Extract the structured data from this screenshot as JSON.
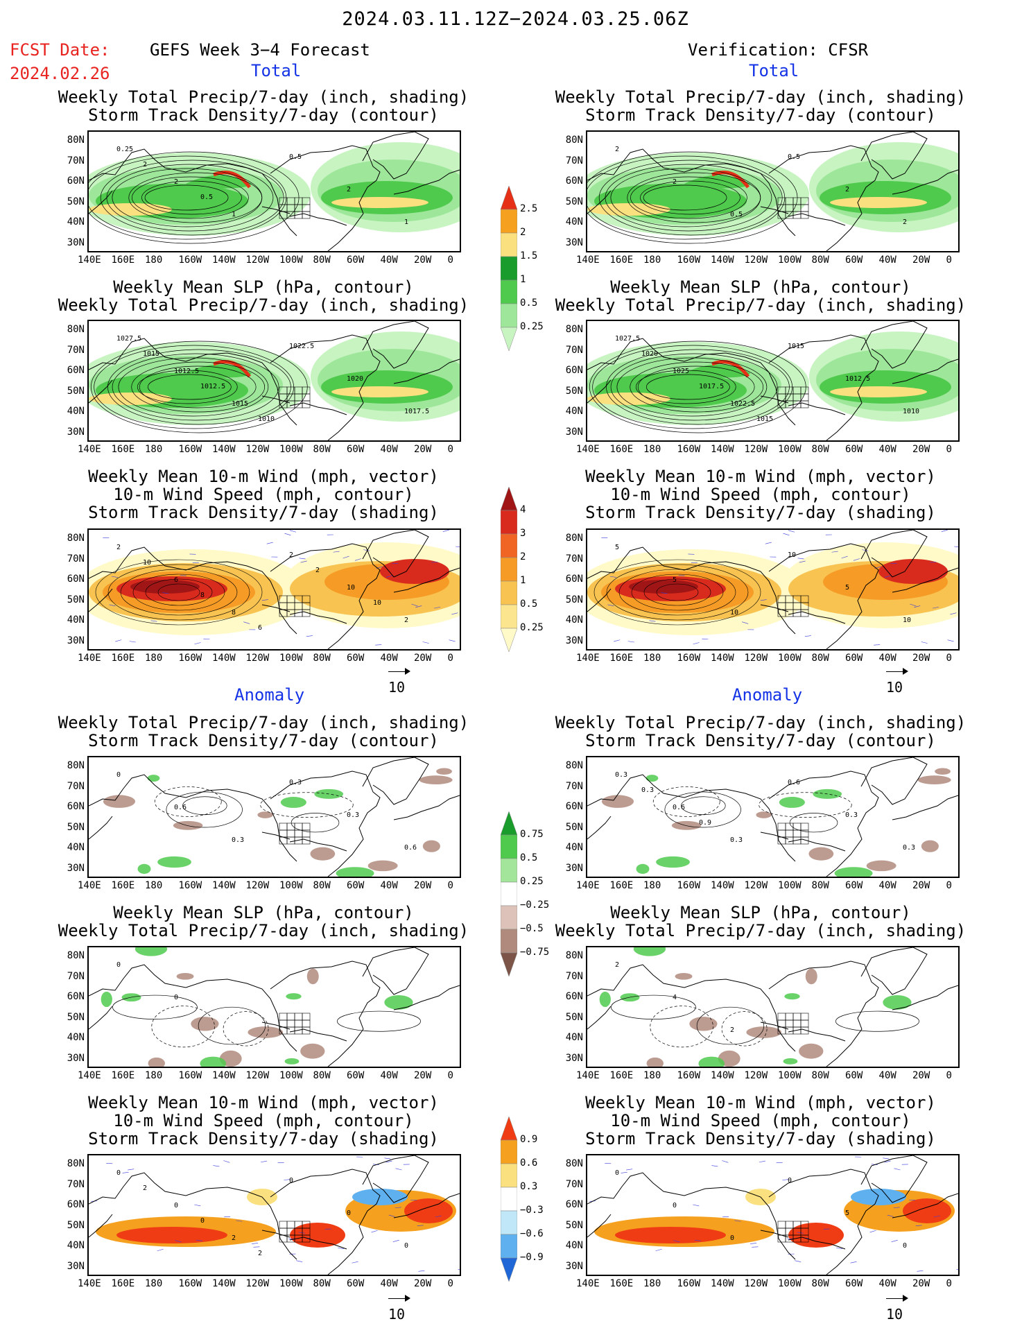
{
  "header": {
    "title": "2024.03.11.12Z−2024.03.25.06Z",
    "fcst_label": "FCST Date:",
    "fcst_date": "2024.02.26",
    "left_title": "GEFS Week 3−4 Forecast",
    "right_title": "Verification: CFSR"
  },
  "sections": {
    "total": "Total",
    "anomaly": "Anomaly"
  },
  "titles": {
    "precip_storm": [
      "Weekly Total Precip/7-day (inch, shading)",
      "Storm Track Density/7-day (contour)"
    ],
    "slp_precip": [
      "Weekly Mean SLP (hPa, contour)",
      "Weekly Total Precip/7-day (inch, shading)"
    ],
    "wind": [
      "Weekly Mean 10-m Wind (mph, vector)",
      "10-m Wind Speed (mph, contour)",
      "Storm Track Density/7-day (shading)"
    ]
  },
  "axes": {
    "lat_labels": [
      "80N",
      "70N",
      "60N",
      "50N",
      "40N",
      "30N"
    ],
    "lon_labels": [
      "140E",
      "160E",
      "180",
      "160W",
      "140W",
      "120W",
      "100W",
      "80W",
      "60W",
      "40W",
      "20W",
      "0"
    ]
  },
  "vector_ref": "10",
  "colorbars": {
    "precip_total": {
      "labels": [
        "2.5",
        "2",
        "1.5",
        "1",
        "0.5",
        "0.25"
      ],
      "colors": [
        "#e53017",
        "#f5a11f",
        "#fbe07f",
        "#1a9c2d",
        "#4fca4d",
        "#9ee79a",
        "#c8f4c2"
      ]
    },
    "storm_total": {
      "labels": [
        "4",
        "3",
        "2",
        "1",
        "0.5",
        "0.25"
      ],
      "colors": [
        "#a01616",
        "#d92b1d",
        "#f06524",
        "#f59b26",
        "#f8c351",
        "#fbe58f",
        "#fffac8"
      ]
    },
    "precip_anom": {
      "labels": [
        "0.75",
        "0.5",
        "0.25",
        "−0.25",
        "−0.5",
        "−0.75"
      ],
      "colors": [
        "#1a9c2d",
        "#4fca4d",
        "#a3e59b",
        "#ffffff",
        "#dcc2b8",
        "#b08a7d",
        "#7c5448"
      ]
    },
    "storm_anom": {
      "labels": [
        "0.9",
        "0.6",
        "0.3",
        "−0.3",
        "−0.6",
        "−0.9"
      ],
      "colors": [
        "#f03c14",
        "#f5a11f",
        "#fbe07f",
        "#ffffff",
        "#bfe7f7",
        "#5fb0ef",
        "#1f66d6"
      ]
    },
    "anom_storm": {
      "colors": [
        "#e8321a",
        "#2c6fdb"
      ]
    }
  },
  "panels": [
    {
      "id": "fc-total-precip",
      "kind": "precip",
      "contour_labels": [
        "0.25",
        "2",
        "1",
        "0.5",
        "2",
        "1",
        "2",
        "0.5"
      ]
    },
    {
      "id": "fc-total-slp",
      "kind": "precip",
      "contour_labels": [
        "1027.5",
        "1012.5",
        "1015",
        "1022.5",
        "1020",
        "1017.5",
        "1015",
        "1012.5",
        "1010"
      ]
    },
    {
      "id": "fc-total-wind",
      "kind": "storm",
      "contour_labels": [
        "2",
        "6",
        "8",
        "2",
        "10",
        "2",
        "10",
        "8",
        "6",
        "2",
        "10"
      ]
    },
    {
      "id": "vf-total-precip",
      "kind": "precip",
      "contour_labels": [
        "2",
        "2",
        "0.5",
        "0.5",
        "2",
        "2"
      ]
    },
    {
      "id": "vf-total-slp",
      "kind": "precip",
      "contour_labels": [
        "1027.5",
        "1025",
        "1022.5",
        "1015",
        "1012.5",
        "1010",
        "1020",
        "1017.5",
        "1015"
      ]
    },
    {
      "id": "vf-total-wind",
      "kind": "storm",
      "contour_labels": [
        "5",
        "5",
        "10",
        "10",
        "5",
        "10"
      ]
    },
    {
      "id": "fc-anom-precip",
      "kind": "anom-precip",
      "contour_labels": [
        "0",
        "0.6",
        "0.3",
        "0.3",
        "0.3",
        "0.6"
      ]
    },
    {
      "id": "fc-anom-slp",
      "kind": "anom-precip",
      "contour_labels": [
        "0",
        "0"
      ]
    },
    {
      "id": "fc-anom-wind",
      "kind": "anom-storm",
      "contour_labels": [
        "0",
        "0",
        "2",
        "0",
        "0",
        "0",
        "2",
        "0",
        "2"
      ]
    },
    {
      "id": "vf-anom-precip",
      "kind": "anom-precip",
      "contour_labels": [
        "0.3",
        "0.6",
        "0.3",
        "0.6",
        "0.3",
        "0.3",
        "0.3",
        "0.9"
      ]
    },
    {
      "id": "vf-anom-slp",
      "kind": "anom-precip",
      "contour_labels": [
        "2",
        "4",
        "2"
      ]
    },
    {
      "id": "vf-anom-wind",
      "kind": "anom-storm",
      "contour_labels": [
        "0",
        "0",
        "0",
        "0",
        "5",
        "0"
      ]
    }
  ]
}
